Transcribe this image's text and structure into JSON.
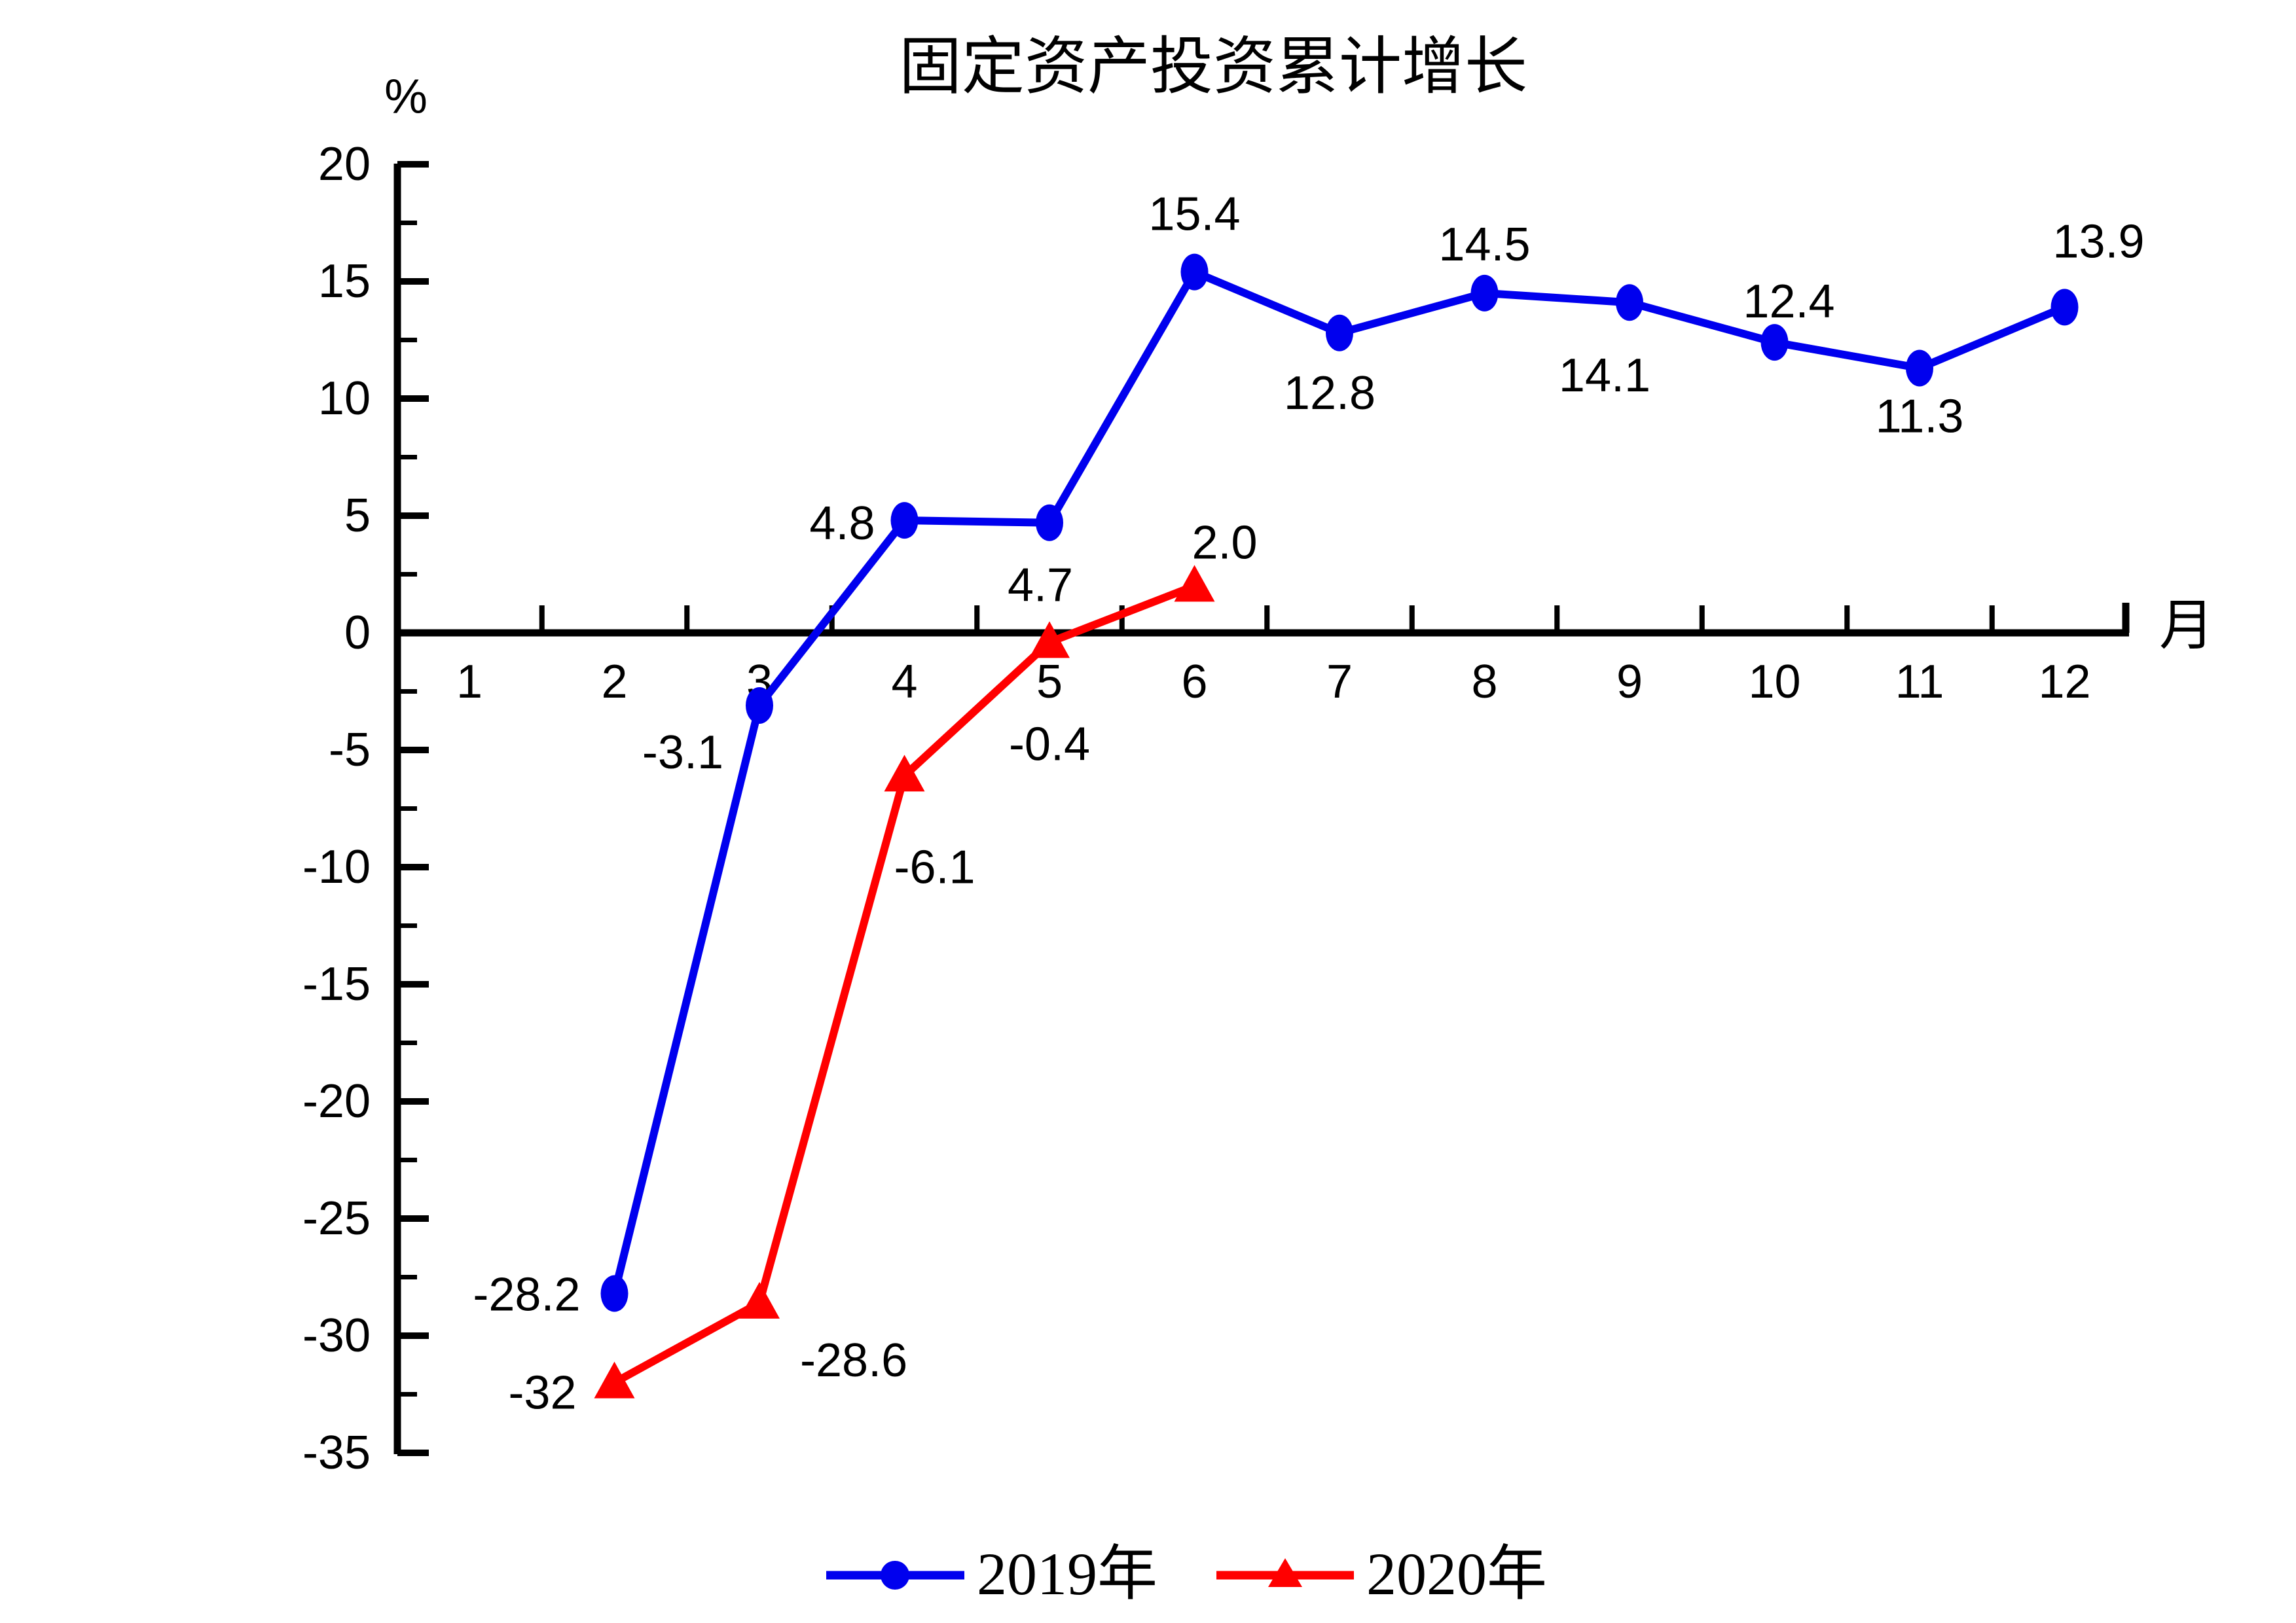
{
  "chart_data": {
    "type": "line",
    "title": "固定资产投资累计增长",
    "ylabel": "%",
    "xlabel": "月",
    "ylim": [
      -35,
      20
    ],
    "y_major_step": 5,
    "y_minor_step": 2.5,
    "grid": false,
    "legend_position": "bottom-center",
    "y_tick_labels": [
      "20",
      "15",
      "10",
      "5",
      "0",
      "-5",
      "-10",
      "-15",
      "-20",
      "-25",
      "-30",
      "-35"
    ],
    "x_tick_labels": [
      "1",
      "2",
      "3",
      "4",
      "5",
      "6",
      "7",
      "8",
      "9",
      "10",
      "11",
      "12"
    ],
    "series": [
      {
        "name": "2019年",
        "color": "#0000EE",
        "marker": "circle",
        "points": [
          {
            "x": 2,
            "y": -28.2,
            "label": "-28.2",
            "anchor": "end",
            "lx": -52,
            "ly": 2
          },
          {
            "x": 3,
            "y": -3.1,
            "label": "-3.1",
            "anchor": "end",
            "lx": -55,
            "ly": 72
          },
          {
            "x": 4,
            "y": 4.8,
            "label": "4.8",
            "anchor": "end",
            "lx": -45,
            "ly": 5
          },
          {
            "x": 5,
            "y": 4.7,
            "label": "4.7",
            "anchor": "middle",
            "lx": -14,
            "ly": 96
          },
          {
            "x": 6,
            "y": 15.4,
            "label": "15.4",
            "anchor": "middle",
            "lx": 0,
            "ly": -88
          },
          {
            "x": 7,
            "y": 12.8,
            "label": "12.8",
            "anchor": "middle",
            "lx": -15,
            "ly": 92
          },
          {
            "x": 8,
            "y": 14.5,
            "label": "14.5",
            "anchor": "middle",
            "lx": 0,
            "ly": -74
          },
          {
            "x": 9,
            "y": 14.1,
            "label": "14.1",
            "anchor": "middle",
            "lx": -38,
            "ly": 112
          },
          {
            "x": 10,
            "y": 12.4,
            "label": "12.4",
            "anchor": "middle",
            "lx": 22,
            "ly": -62
          },
          {
            "x": 11,
            "y": 11.3,
            "label": "11.3",
            "anchor": "middle",
            "lx": 0,
            "ly": 74
          },
          {
            "x": 12,
            "y": 13.9,
            "label": "13.9",
            "anchor": "middle",
            "lx": 52,
            "ly": -100
          }
        ]
      },
      {
        "name": "2020年",
        "color": "#FF0000",
        "marker": "triangle",
        "points": [
          {
            "x": 2,
            "y": -32,
            "label": "-32",
            "anchor": "end",
            "lx": -58,
            "ly": 16
          },
          {
            "x": 3,
            "y": -28.6,
            "label": "-28.6",
            "anchor": "start",
            "lx": 62,
            "ly": 88
          },
          {
            "x": 4,
            "y": -6.1,
            "label": "-6.1",
            "anchor": "start",
            "lx": -16,
            "ly": 140
          },
          {
            "x": 5,
            "y": -0.4,
            "label": "-0.4",
            "anchor": "middle",
            "lx": 0,
            "ly": 156
          },
          {
            "x": 6,
            "y": 2.0,
            "label": "2.0",
            "anchor": "middle",
            "lx": 46,
            "ly": -66
          }
        ]
      }
    ]
  }
}
